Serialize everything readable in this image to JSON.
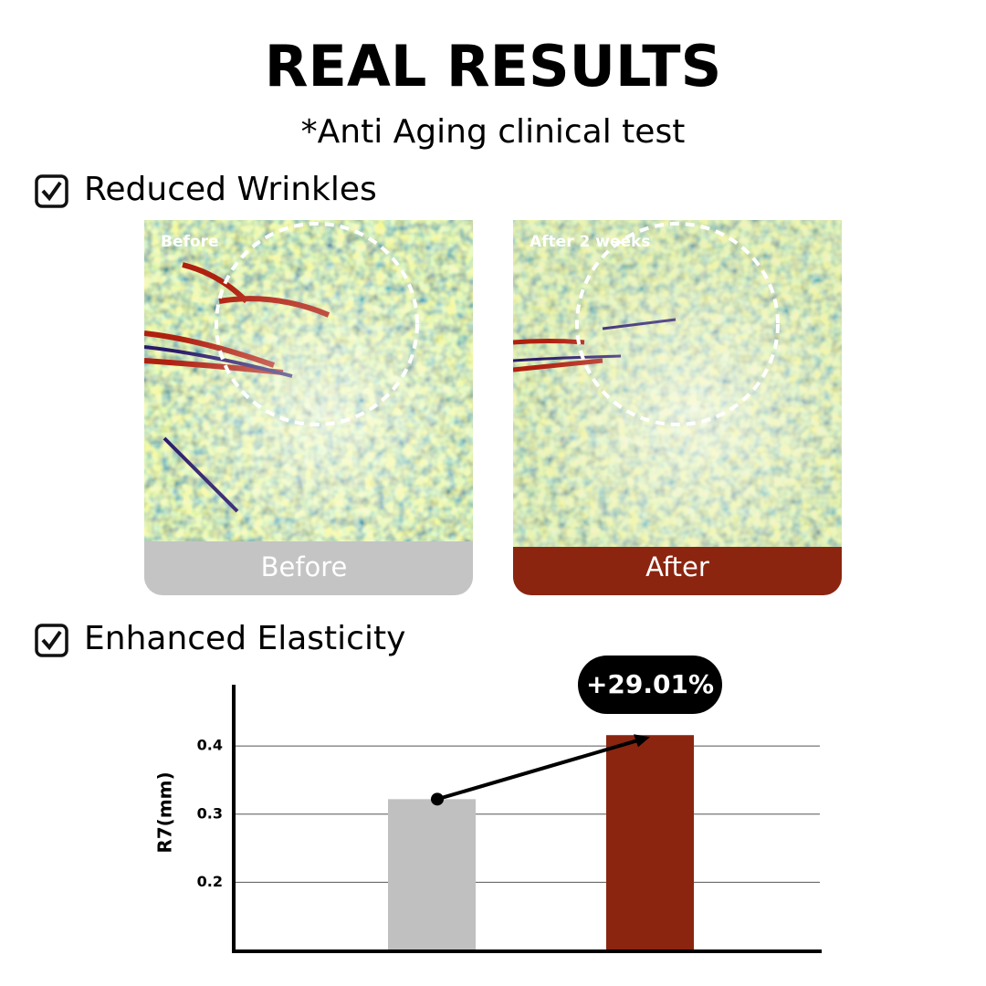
{
  "header": {
    "title": "REAL RESULTS",
    "subtitle": "*Anti Aging clinical test"
  },
  "sections": [
    "Reduced Wrinkles",
    "Enhanced Elasticity"
  ],
  "images": [
    {
      "overlay_label": "Before",
      "caption": "Before"
    },
    {
      "overlay_label": "After 2 weeks",
      "caption": "After"
    }
  ],
  "chart_data": {
    "type": "bar",
    "y_label": "R7(mm)",
    "categories": [
      null,
      null
    ],
    "values": [
      0.322,
      0.416
    ],
    "colors": [
      "#c0c0c0",
      "#8b2510"
    ],
    "ylim": [
      0.1,
      0.49
    ],
    "yticks": [
      0.2,
      0.3,
      0.4
    ],
    "grid": true,
    "annotation": "+29.01%"
  }
}
